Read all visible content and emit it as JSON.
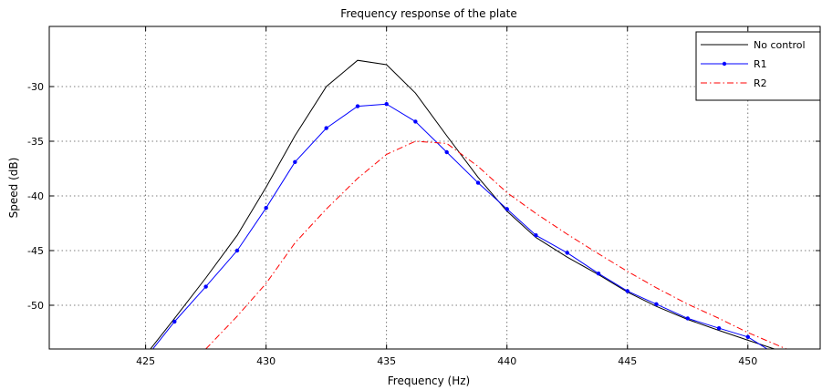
{
  "chart_data": {
    "type": "line",
    "title": "Frequency response of the plate",
    "xlabel": "Frequency (Hz)",
    "ylabel": "Speed (dB)",
    "xlim": [
      421,
      453
    ],
    "ylim": [
      -54,
      -24.5
    ],
    "xticks": [
      425,
      430,
      435,
      440,
      445,
      450
    ],
    "yticks": [
      -50,
      -45,
      -40,
      -35,
      -30
    ],
    "grid": true,
    "legend_position": "top-right",
    "series": [
      {
        "name": "No control",
        "color": "#000000",
        "style": "solid",
        "marker": "none",
        "x": [
          425.2,
          426.2,
          427.5,
          428.8,
          430,
          431.2,
          432.5,
          433.8,
          435,
          436.2,
          437.5,
          438.8,
          440,
          441.2,
          442.5,
          443.8,
          445,
          446.2,
          447.5,
          448.8,
          450,
          451.1
        ],
        "y": [
          -54,
          -51.2,
          -47.5,
          -43.6,
          -39.2,
          -34.5,
          -30.0,
          -27.6,
          -28.0,
          -30.6,
          -34.5,
          -38.3,
          -41.4,
          -43.8,
          -45.6,
          -47.2,
          -48.8,
          -50.1,
          -51.3,
          -52.3,
          -53.2,
          -54
        ]
      },
      {
        "name": "R1",
        "color": "#0000ff",
        "style": "solid",
        "marker": "dot",
        "x": [
          425.3,
          426.2,
          427.5,
          428.8,
          430,
          431.2,
          432.5,
          433.8,
          435,
          436.2,
          437.5,
          438.8,
          440,
          441.2,
          442.5,
          443.8,
          445,
          446.2,
          447.5,
          448.8,
          450,
          450.8
        ],
        "y": [
          -54,
          -51.5,
          -48.3,
          -45.0,
          -41.1,
          -36.9,
          -33.8,
          -31.8,
          -31.6,
          -33.2,
          -36.0,
          -38.8,
          -41.2,
          -43.6,
          -45.2,
          -47.1,
          -48.7,
          -49.9,
          -51.2,
          -52.1,
          -52.9,
          -54
        ]
      },
      {
        "name": "R2",
        "color": "#ff0000",
        "style": "dashdot",
        "marker": "none",
        "x": [
          427.5,
          428.8,
          430,
          431.2,
          432.5,
          433.8,
          435,
          436.2,
          437.5,
          438.8,
          440,
          441.2,
          442.5,
          443.8,
          445,
          446.2,
          447.5,
          448.8,
          450,
          451.6
        ],
        "y": [
          -54,
          -51.0,
          -48.0,
          -44.3,
          -41.2,
          -38.4,
          -36.2,
          -35.0,
          -35.2,
          -37.3,
          -39.7,
          -41.6,
          -43.5,
          -45.3,
          -46.9,
          -48.4,
          -49.9,
          -51.2,
          -52.5,
          -54
        ]
      }
    ]
  }
}
